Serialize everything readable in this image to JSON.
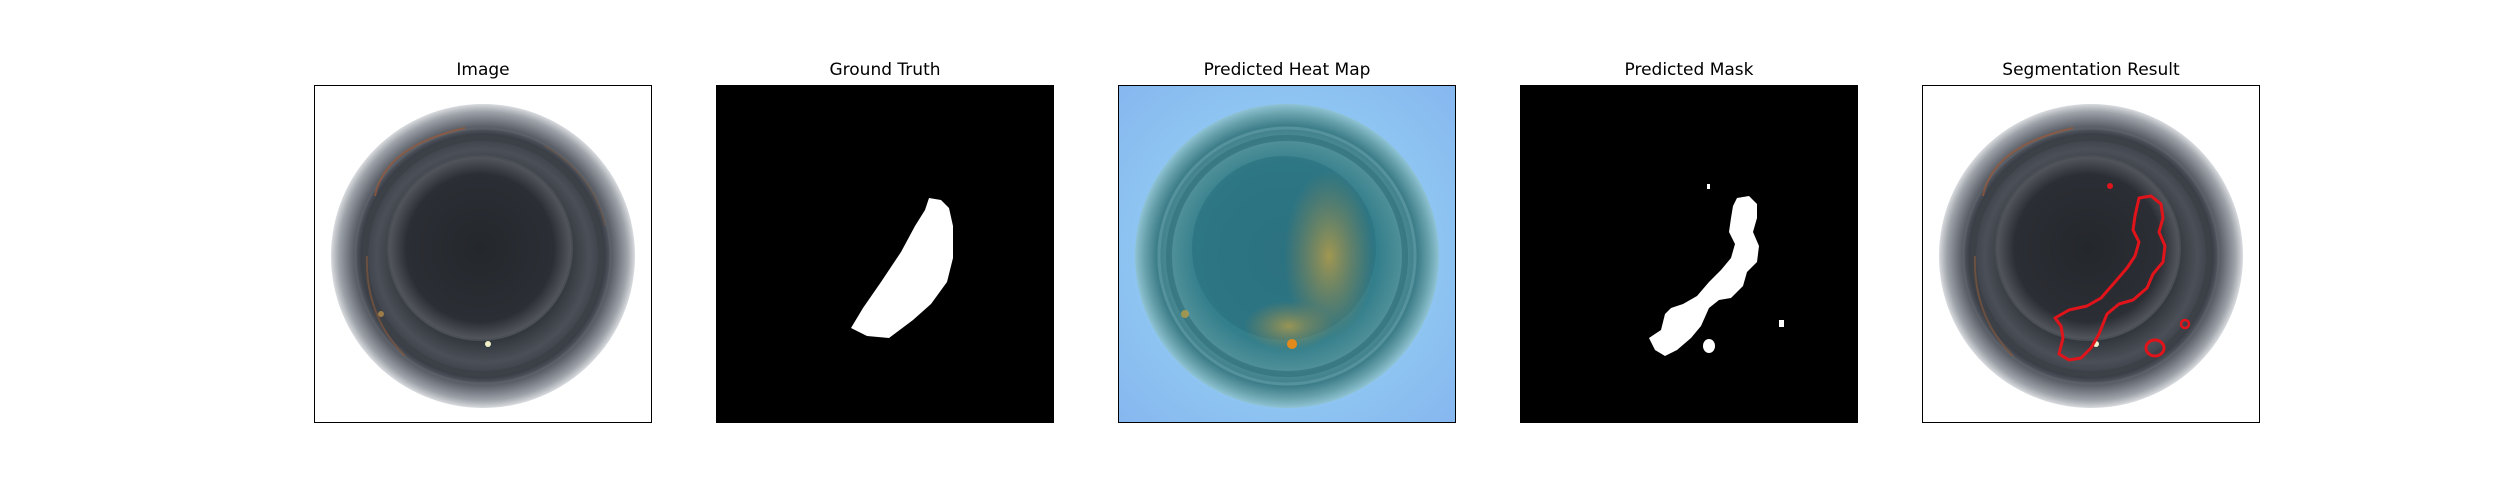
{
  "panels": [
    {
      "title": "Image"
    },
    {
      "title": "Ground Truth"
    },
    {
      "title": "Predicted Heat Map"
    },
    {
      "title": "Predicted Mask"
    },
    {
      "title": "Segmentation Result"
    }
  ],
  "colors": {
    "background": "#ffffff",
    "mask_background": "#000000",
    "mask_foreground": "#ffffff",
    "heatmap_outer": "#8ccdf0",
    "heatmap_inner": "#2e7f86",
    "heatmap_hot": "#c9a13a",
    "segmentation_contour": "#e0141a"
  }
}
